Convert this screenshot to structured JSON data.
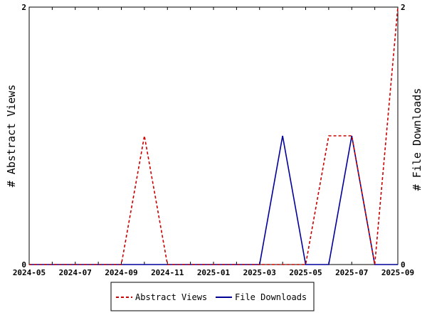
{
  "chart_data": {
    "type": "line",
    "x": [
      "2024-05",
      "2024-06",
      "2024-07",
      "2024-08",
      "2024-09",
      "2024-10",
      "2024-11",
      "2024-12",
      "2025-01",
      "2025-02",
      "2025-03",
      "2025-04",
      "2025-05",
      "2025-06",
      "2025-07",
      "2025-08",
      "2025-09"
    ],
    "x_tick_labels": [
      "2024-05",
      "2024-07",
      "2024-09",
      "2024-11",
      "2025-01",
      "2025-03",
      "2025-05",
      "2025-07",
      "2025-09"
    ],
    "series": [
      {
        "name": "Abstract Views",
        "color": "#cc0000",
        "dash": "dashed",
        "axis": "left",
        "values": [
          0,
          0,
          0,
          0,
          0,
          1,
          0,
          0,
          0,
          0,
          0,
          0,
          0,
          1,
          1,
          0,
          2
        ]
      },
      {
        "name": "File Downloads",
        "color": "#000099",
        "dash": "solid",
        "axis": "right",
        "values": [
          0,
          0,
          0,
          0,
          0,
          0,
          0,
          0,
          0,
          0,
          0,
          1,
          0,
          0,
          1,
          0,
          0
        ]
      }
    ],
    "ylabel_left": "# Abstract Views",
    "ylabel_right": "# File Downloads",
    "ylim_left": [
      0,
      2
    ],
    "ylim_right": [
      0,
      2
    ],
    "y_tick_labels_left": [
      "0",
      "2"
    ],
    "y_tick_labels_right": [
      "0",
      "2"
    ],
    "grid": false,
    "legend_position": "bottom"
  }
}
